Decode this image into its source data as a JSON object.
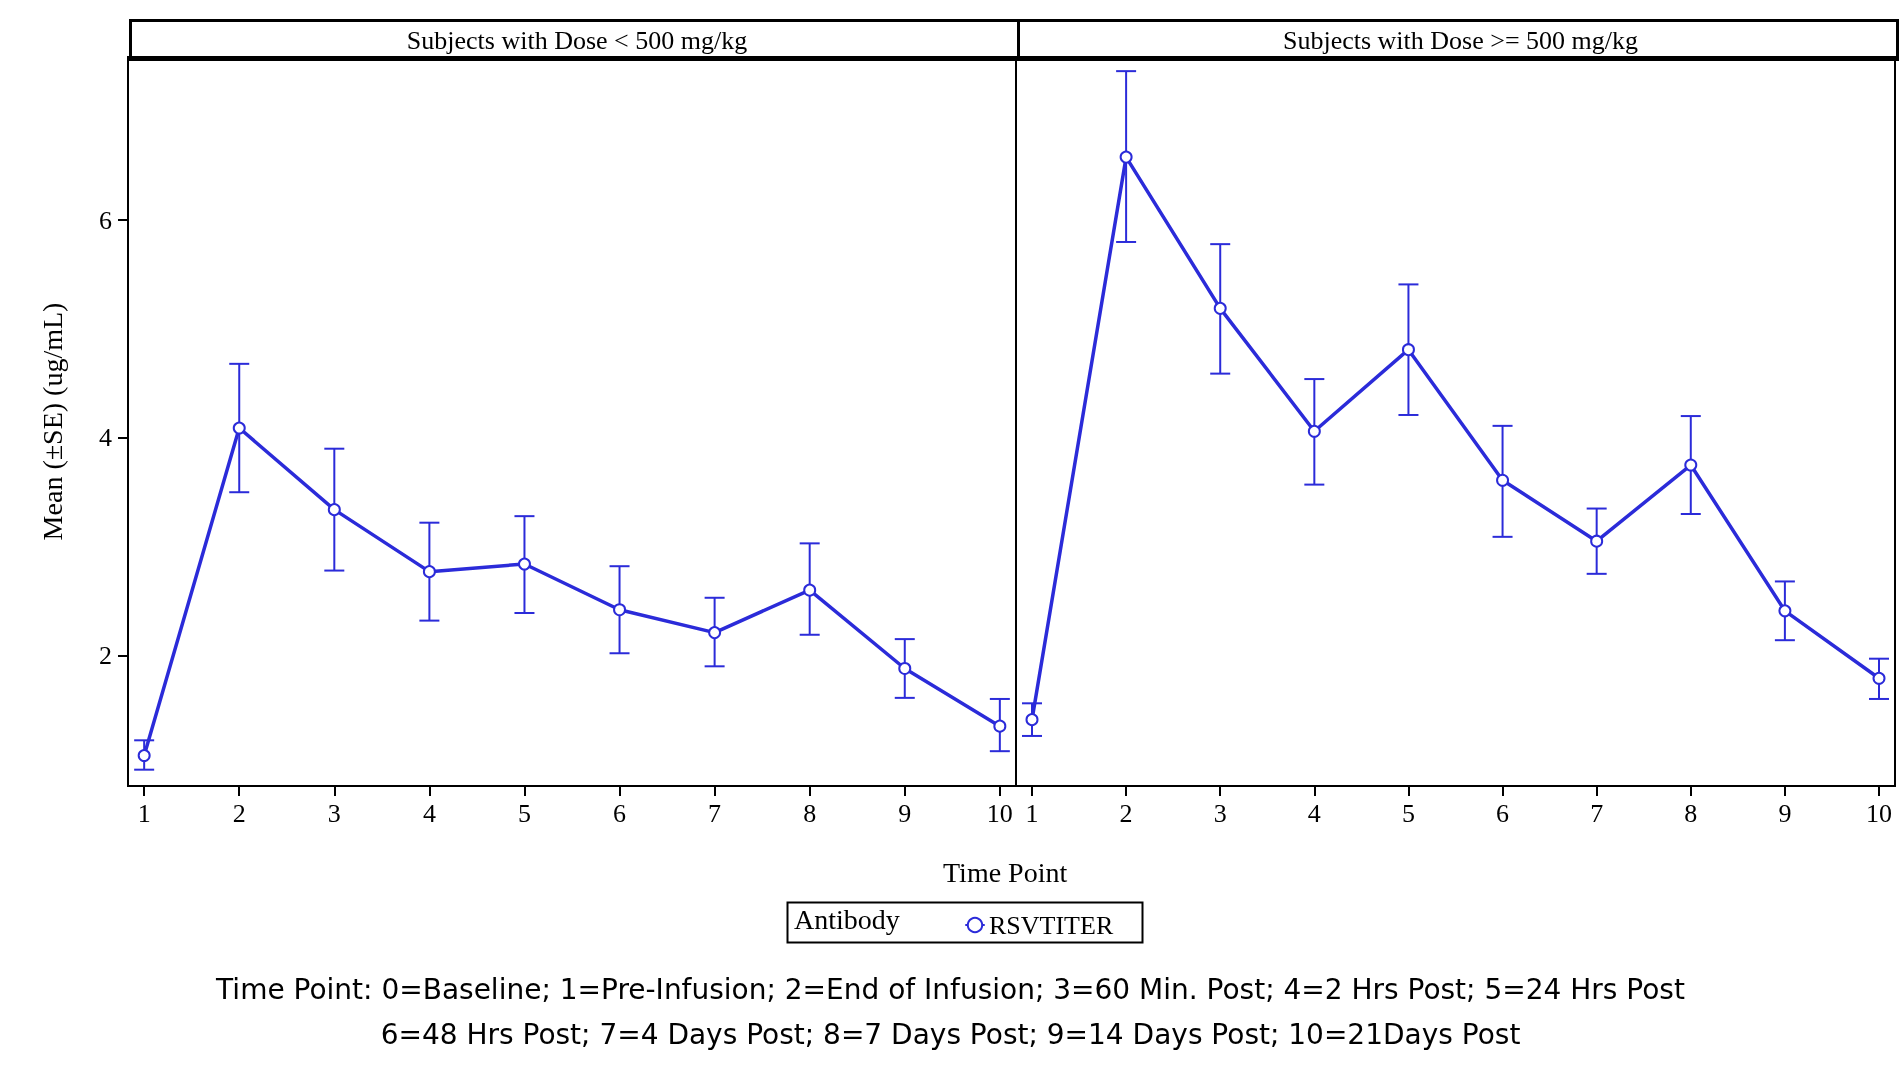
{
  "chart_data": [
    {
      "type": "line",
      "title": "Subjects with Dose < 500 mg/kg",
      "xlabel": "Time Point",
      "ylabel": "Mean (±SE) (ug/mL)",
      "legend_title": "Antibody",
      "legend": "bottom",
      "marker": "circle",
      "line_style": "solid",
      "grid": false,
      "x": [
        1,
        2,
        3,
        4,
        5,
        6,
        7,
        8,
        9,
        10
      ],
      "xlim": [
        0.83,
        10.17
      ],
      "xticks": [
        1,
        2,
        3,
        4,
        5,
        6,
        7,
        8,
        9,
        10
      ],
      "ylim": [
        0.8,
        7.5
      ],
      "yticks": [
        2,
        4,
        6
      ],
      "series": [
        {
          "name": "RSVTITER",
          "color": "#2b2bd9",
          "values": [
            1.08,
            4.09,
            3.34,
            2.77,
            2.84,
            2.42,
            2.21,
            2.6,
            1.88,
            1.35
          ],
          "errors": [
            [
              0.95,
              1.22
            ],
            [
              3.5,
              4.68
            ],
            [
              2.78,
              3.9
            ],
            [
              2.32,
              3.22
            ],
            [
              2.39,
              3.28
            ],
            [
              2.02,
              2.82
            ],
            [
              1.9,
              2.53
            ],
            [
              2.19,
              3.03
            ],
            [
              1.61,
              2.15
            ],
            [
              1.12,
              1.6
            ]
          ]
        }
      ],
      "annotations": [
        "Time Point: 0=Baseline; 1=Pre-Infusion; 2=End of Infusion; 3=60 Min. Post; 4=2 Hrs Post; 5=24 Hrs Post",
        "6=48 Hrs Post; 7=4 Days Post; 8=7 Days Post; 9=14 Days Post; 10=21Days Post"
      ]
    },
    {
      "type": "line",
      "title": "Subjects with Dose >= 500 mg/kg",
      "marker": "circle",
      "line_style": "solid",
      "grid": false,
      "tick_labels": "x",
      "x": [
        1,
        2,
        3,
        4,
        5,
        6,
        7,
        8,
        9,
        10
      ],
      "xlim": [
        0.83,
        10.17
      ],
      "xticks": [
        1,
        2,
        3,
        4,
        5,
        6,
        7,
        8,
        9,
        10
      ],
      "ylim": [
        0.8,
        7.5
      ],
      "yticks": [
        2,
        4,
        6
      ],
      "series": [
        {
          "color": "#2b2bd9",
          "values": [
            1.41,
            6.58,
            5.19,
            4.06,
            4.81,
            3.61,
            3.05,
            3.75,
            2.41,
            1.79
          ],
          "errors": [
            [
              1.26,
              1.56
            ],
            [
              5.8,
              7.37
            ],
            [
              4.59,
              5.78
            ],
            [
              3.57,
              4.54
            ],
            [
              4.21,
              5.41
            ],
            [
              3.09,
              4.11
            ],
            [
              2.75,
              3.35
            ],
            [
              3.3,
              4.2
            ],
            [
              2.14,
              2.68
            ],
            [
              1.6,
              1.97
            ]
          ]
        }
      ]
    }
  ]
}
